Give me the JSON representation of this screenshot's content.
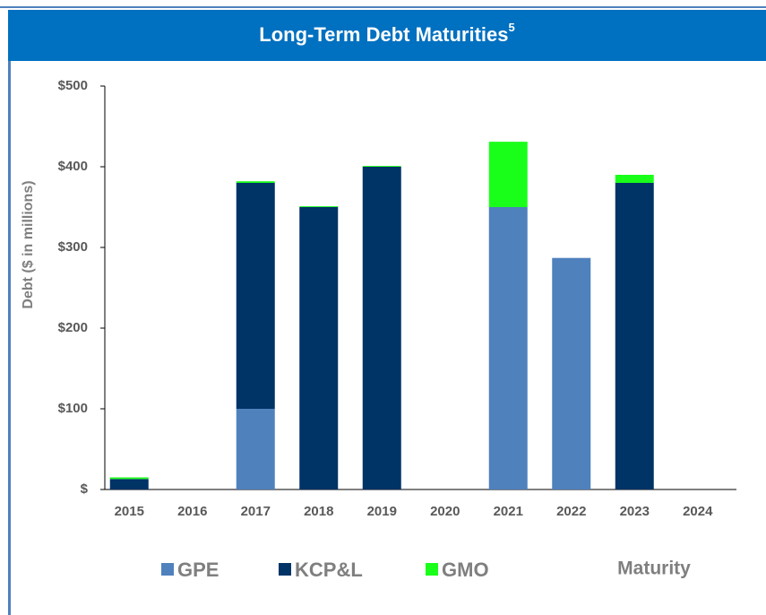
{
  "chart_data": {
    "type": "bar",
    "stacked": true,
    "title": "Long-Term Debt Maturities",
    "title_footnote": "5",
    "ylabel": "Debt ($ in millions)",
    "xlabel": "Maturity",
    "categories": [
      "2015",
      "2016",
      "2017",
      "2018",
      "2019",
      "2020",
      "2021",
      "2022",
      "2023",
      "2024"
    ],
    "series": [
      {
        "name": "GPE",
        "color": "#4f81bd",
        "values": [
          0,
          0,
          100,
          0,
          0,
          0,
          350,
          287,
          0,
          0
        ]
      },
      {
        "name": "KCP&L",
        "color": "#003366",
        "values": [
          13,
          0,
          280,
          350,
          400,
          0,
          0,
          0,
          380,
          0
        ]
      },
      {
        "name": "GMO",
        "color": "#1aff1a",
        "values": [
          2,
          0,
          2,
          1,
          1,
          0,
          81,
          0,
          10,
          0
        ]
      }
    ],
    "ylim": [
      0,
      500
    ],
    "yticks": [
      {
        "value": 0,
        "label": "$"
      },
      {
        "value": 100,
        "label": "$100"
      },
      {
        "value": 200,
        "label": "$200"
      },
      {
        "value": 300,
        "label": "$300"
      },
      {
        "value": 400,
        "label": "$400"
      },
      {
        "value": 500,
        "label": "$500"
      }
    ],
    "grid": false
  }
}
